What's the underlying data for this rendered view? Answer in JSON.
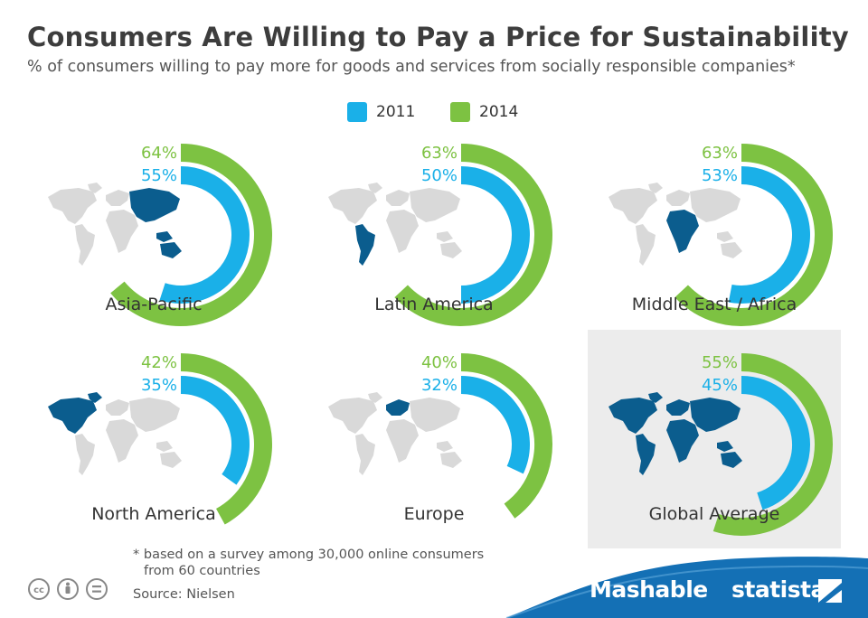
{
  "title": "Consumers Are Willing to Pay a Price for Sustainability",
  "subtitle": "% of consumers willing to pay more for goods and services from socially responsible companies*",
  "colors": {
    "series_2011": "#1ab0e8",
    "series_2014": "#7dc242",
    "map_base": "#d9d9d9",
    "map_highlight": "#0b5d8e",
    "band": "#1470b5"
  },
  "legend": [
    {
      "label": "2011",
      "color": "#1ab0e8"
    },
    {
      "label": "2014",
      "color": "#7dc242"
    }
  ],
  "chart_data": {
    "type": "radial-bar",
    "scale_max": 100,
    "series": [
      {
        "name": "2011",
        "values": [
          55,
          50,
          53,
          35,
          32,
          45
        ]
      },
      {
        "name": "2014",
        "values": [
          64,
          63,
          63,
          42,
          40,
          55
        ]
      }
    ],
    "categories": [
      "Asia-Pacific",
      "Latin America",
      "Middle East / Africa",
      "North America",
      "Europe",
      "Global Average"
    ],
    "panels": [
      {
        "region": "Asia-Pacific",
        "v2011": 55,
        "v2014": 64,
        "label_2011": "55%",
        "label_2014": "64%",
        "highlighted_area": "asia-pacific",
        "highlight": false
      },
      {
        "region": "Latin America",
        "v2011": 50,
        "v2014": 63,
        "label_2011": "50%",
        "label_2014": "63%",
        "highlighted_area": "latin-america",
        "highlight": false
      },
      {
        "region": "Middle East / Africa",
        "v2011": 53,
        "v2014": 63,
        "label_2011": "53%",
        "label_2014": "63%",
        "highlighted_area": "middle-east-africa",
        "highlight": false
      },
      {
        "region": "North America",
        "v2011": 35,
        "v2014": 42,
        "label_2011": "35%",
        "label_2014": "42%",
        "highlighted_area": "north-america",
        "highlight": false
      },
      {
        "region": "Europe",
        "v2011": 32,
        "v2014": 40,
        "label_2011": "32%",
        "label_2014": "40%",
        "highlighted_area": "europe",
        "highlight": false
      },
      {
        "region": "Global Average",
        "v2011": 45,
        "v2014": 55,
        "label_2011": "45%",
        "label_2014": "55%",
        "highlighted_area": "world",
        "highlight": true
      }
    ]
  },
  "footnote": {
    "line1": "* based on a survey among 30,000 online consumers",
    "line2": "from 60 countries"
  },
  "source": "Source: Nielsen",
  "license_icons": [
    "creative-commons-icon",
    "attribution-icon",
    "no-derivatives-icon"
  ],
  "brands": {
    "mashable": "Mashable",
    "statista": "statista"
  }
}
